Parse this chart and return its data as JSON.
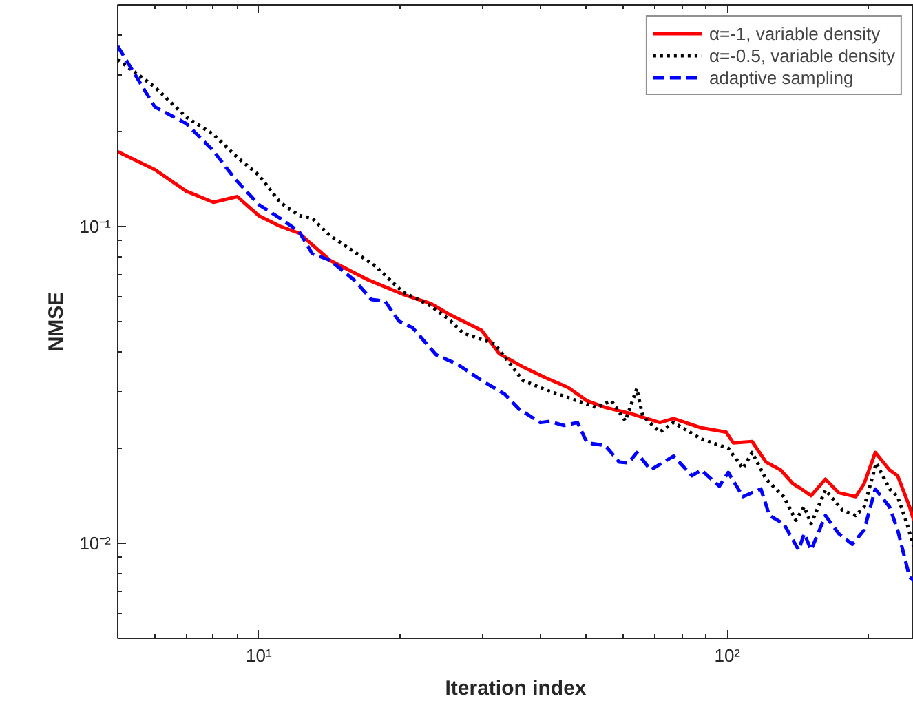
{
  "chart_data": {
    "type": "line",
    "xlabel": "Iteration index",
    "ylabel": "NMSE",
    "log": "xy",
    "xlim": [
      5,
      250
    ],
    "ylim": [
      0.005,
      0.5
    ],
    "xticks": [
      {
        "value": 10,
        "label": "10¹"
      },
      {
        "value": 100,
        "label": "10²"
      }
    ],
    "yticks": [
      {
        "value": 0.01,
        "label": "10⁻²"
      },
      {
        "value": 0.1,
        "label": "10⁻¹"
      }
    ],
    "grid": false,
    "legend": "top right",
    "marker": "none",
    "series": [
      {
        "name": "α=-1, variable density",
        "color": "#ff0000",
        "line_style": "solid",
        "x": [
          5,
          6,
          7,
          8,
          9,
          10,
          11.1,
          12.2,
          14.2,
          17,
          20.3,
          23.3,
          25.5,
          29.9,
          32.6,
          36.6,
          41,
          45.7,
          50.2,
          54.9,
          62.9,
          71.8,
          76.8,
          88,
          99.4,
          103,
          113,
          121,
          130,
          138,
          144,
          151,
          162,
          173,
          188,
          196,
          207,
          222,
          231,
          245,
          250
        ],
        "values": [
          0.172,
          0.151,
          0.129,
          0.119,
          0.124,
          0.108,
          0.1,
          0.095,
          0.078,
          0.068,
          0.061,
          0.057,
          0.0527,
          0.0469,
          0.0396,
          0.036,
          0.0332,
          0.031,
          0.0281,
          0.0268,
          0.0255,
          0.024,
          0.0247,
          0.0231,
          0.0224,
          0.0207,
          0.0209,
          0.018,
          0.017,
          0.0154,
          0.0148,
          0.0141,
          0.0159,
          0.0144,
          0.014,
          0.0154,
          0.0193,
          0.017,
          0.0163,
          0.013,
          0.0118
        ]
      },
      {
        "name": "α=-0.5, variable density",
        "color": "#000000",
        "line_style": "dotted",
        "x": [
          5,
          6,
          7,
          8,
          9,
          10,
          11.1,
          12.2,
          13,
          14.2,
          16,
          17.8,
          20.3,
          23.3,
          25.5,
          27.3,
          31.9,
          36.6,
          41.8,
          47.9,
          52.5,
          56.6,
          60.6,
          64.1,
          66,
          71.8,
          76.8,
          88,
          100.5,
          108,
          113,
          121,
          132,
          140,
          146,
          151,
          162,
          176,
          188,
          196,
          208,
          222,
          231,
          242,
          250
        ],
        "values": [
          0.336,
          0.275,
          0.221,
          0.195,
          0.165,
          0.145,
          0.119,
          0.108,
          0.106,
          0.0933,
          0.083,
          0.0745,
          0.062,
          0.056,
          0.0507,
          0.046,
          0.0425,
          0.0326,
          0.0301,
          0.0281,
          0.0268,
          0.0281,
          0.0243,
          0.0307,
          0.0252,
          0.0224,
          0.024,
          0.0213,
          0.0199,
          0.0172,
          0.0193,
          0.0159,
          0.014,
          0.0118,
          0.013,
          0.0115,
          0.0147,
          0.0127,
          0.0122,
          0.013,
          0.0179,
          0.0148,
          0.014,
          0.0115,
          0.0097
        ]
      },
      {
        "name": "adaptive sampling",
        "color": "#0000ff",
        "line_style": "dashed",
        "x": [
          5,
          6,
          7,
          8,
          8.9,
          10,
          11.1,
          12.2,
          13,
          14.2,
          16,
          17.4,
          18.6,
          19.9,
          21.3,
          23.9,
          26.6,
          29.9,
          33.5,
          35.9,
          39.9,
          41.8,
          44.8,
          47.9,
          50.2,
          54.9,
          58.8,
          61.6,
          64.1,
          68.6,
          76.8,
          84.1,
          88,
          96.2,
          100.5,
          108,
          118,
          123,
          132,
          142,
          146,
          151,
          162,
          173,
          185,
          196,
          207,
          222,
          231,
          245,
          250
        ],
        "values": [
          0.37,
          0.238,
          0.211,
          0.173,
          0.141,
          0.117,
          0.106,
          0.096,
          0.082,
          0.078,
          0.0675,
          0.0587,
          0.058,
          0.0502,
          0.0478,
          0.0393,
          0.0366,
          0.0326,
          0.0295,
          0.0265,
          0.024,
          0.0242,
          0.0235,
          0.024,
          0.0207,
          0.0203,
          0.018,
          0.0179,
          0.0193,
          0.017,
          0.0188,
          0.0163,
          0.017,
          0.0151,
          0.0167,
          0.014,
          0.0148,
          0.0122,
          0.0115,
          0.0095,
          0.0107,
          0.0095,
          0.0122,
          0.0107,
          0.0099,
          0.011,
          0.0148,
          0.013,
          0.011,
          0.0078,
          0.0076
        ]
      }
    ]
  }
}
